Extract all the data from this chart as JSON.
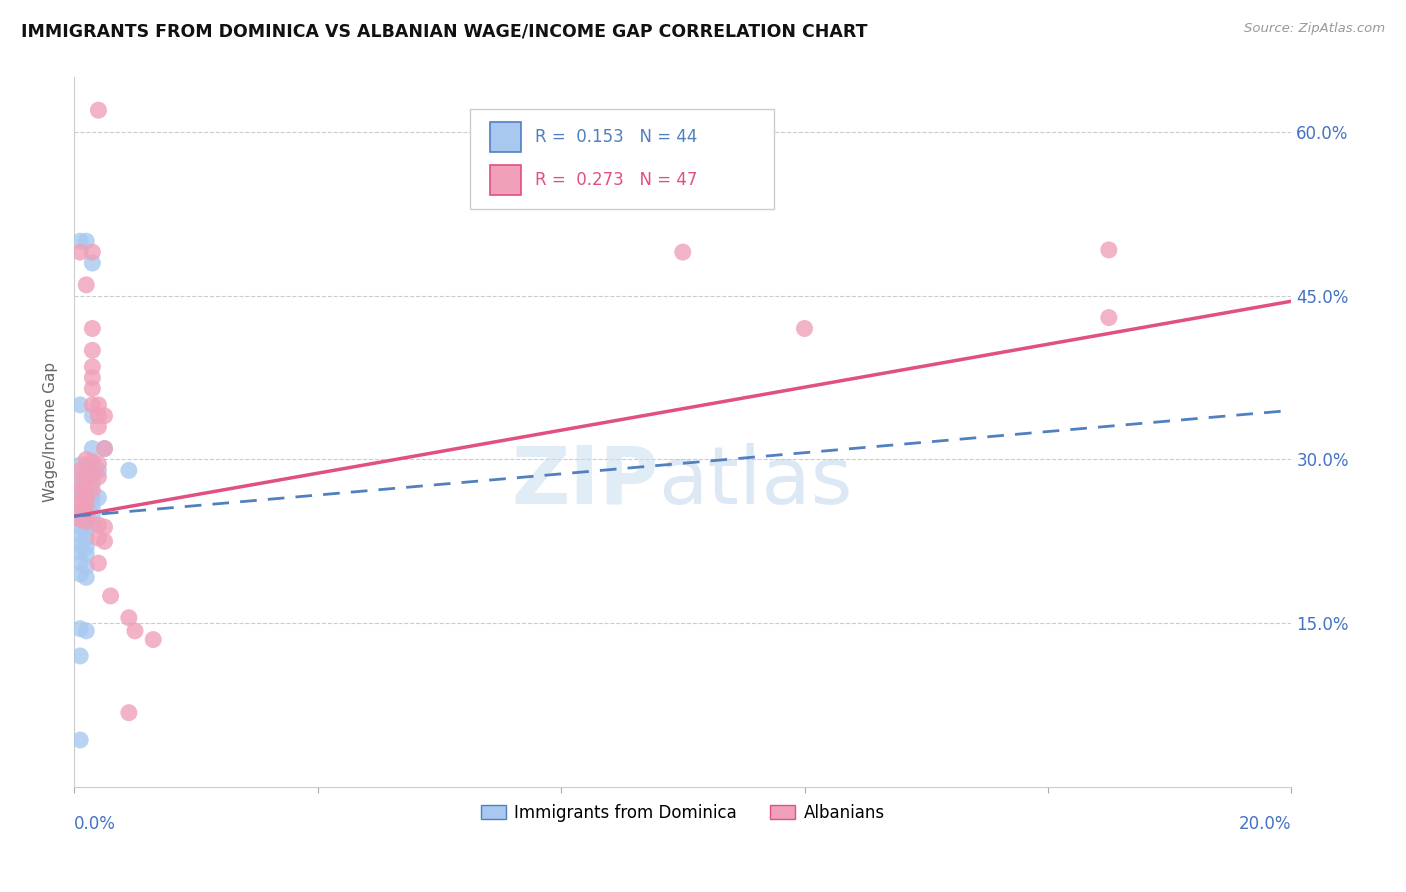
{
  "title": "IMMIGRANTS FROM DOMINICA VS ALBANIAN WAGE/INCOME GAP CORRELATION CHART",
  "source": "Source: ZipAtlas.com",
  "ylabel": "Wage/Income Gap",
  "y_ticks": [
    0.15,
    0.3,
    0.45,
    0.6
  ],
  "y_tick_labels": [
    "15.0%",
    "30.0%",
    "45.0%",
    "60.0%"
  ],
  "blue_scatter_color": "#A8C8F0",
  "pink_scatter_color": "#F0A0B8",
  "trend_blue_color": "#5080C0",
  "trend_pink_color": "#E05080",
  "x_min": 0.0,
  "x_max": 0.2,
  "y_min": 0.0,
  "y_max": 0.65,
  "blue_trend_x0": 0.0,
  "blue_trend_y0": 0.248,
  "blue_trend_x1": 0.2,
  "blue_trend_y1": 0.345,
  "pink_trend_x0": 0.0,
  "pink_trend_y0": 0.248,
  "pink_trend_x1": 0.2,
  "pink_trend_y1": 0.445,
  "blue_points": [
    [
      0.001,
      0.5
    ],
    [
      0.002,
      0.5
    ],
    [
      0.003,
      0.48
    ],
    [
      0.001,
      0.35
    ],
    [
      0.003,
      0.34
    ],
    [
      0.003,
      0.31
    ],
    [
      0.005,
      0.31
    ],
    [
      0.001,
      0.295
    ],
    [
      0.002,
      0.295
    ],
    [
      0.003,
      0.293
    ],
    [
      0.004,
      0.29
    ],
    [
      0.001,
      0.282
    ],
    [
      0.002,
      0.28
    ],
    [
      0.003,
      0.278
    ],
    [
      0.001,
      0.27
    ],
    [
      0.002,
      0.268
    ],
    [
      0.003,
      0.265
    ],
    [
      0.004,
      0.265
    ],
    [
      0.001,
      0.26
    ],
    [
      0.002,
      0.258
    ],
    [
      0.003,
      0.257
    ],
    [
      0.001,
      0.252
    ],
    [
      0.002,
      0.25
    ],
    [
      0.003,
      0.25
    ],
    [
      0.001,
      0.245
    ],
    [
      0.002,
      0.243
    ],
    [
      0.003,
      0.242
    ],
    [
      0.001,
      0.238
    ],
    [
      0.002,
      0.236
    ],
    [
      0.001,
      0.23
    ],
    [
      0.002,
      0.228
    ],
    [
      0.001,
      0.222
    ],
    [
      0.002,
      0.22
    ],
    [
      0.001,
      0.215
    ],
    [
      0.002,
      0.213
    ],
    [
      0.001,
      0.205
    ],
    [
      0.002,
      0.202
    ],
    [
      0.001,
      0.195
    ],
    [
      0.002,
      0.192
    ],
    [
      0.001,
      0.145
    ],
    [
      0.002,
      0.143
    ],
    [
      0.001,
      0.12
    ],
    [
      0.001,
      0.043
    ],
    [
      0.009,
      0.29
    ]
  ],
  "pink_points": [
    [
      0.004,
      0.62
    ],
    [
      0.001,
      0.49
    ],
    [
      0.003,
      0.49
    ],
    [
      0.002,
      0.46
    ],
    [
      0.003,
      0.42
    ],
    [
      0.003,
      0.4
    ],
    [
      0.003,
      0.385
    ],
    [
      0.003,
      0.375
    ],
    [
      0.003,
      0.365
    ],
    [
      0.003,
      0.35
    ],
    [
      0.004,
      0.35
    ],
    [
      0.004,
      0.34
    ],
    [
      0.005,
      0.34
    ],
    [
      0.004,
      0.33
    ],
    [
      0.005,
      0.31
    ],
    [
      0.002,
      0.3
    ],
    [
      0.003,
      0.298
    ],
    [
      0.004,
      0.296
    ],
    [
      0.001,
      0.29
    ],
    [
      0.002,
      0.288
    ],
    [
      0.003,
      0.285
    ],
    [
      0.004,
      0.284
    ],
    [
      0.001,
      0.278
    ],
    [
      0.002,
      0.275
    ],
    [
      0.003,
      0.272
    ],
    [
      0.001,
      0.268
    ],
    [
      0.002,
      0.265
    ],
    [
      0.001,
      0.26
    ],
    [
      0.002,
      0.258
    ],
    [
      0.001,
      0.252
    ],
    [
      0.002,
      0.25
    ],
    [
      0.001,
      0.245
    ],
    [
      0.002,
      0.243
    ],
    [
      0.004,
      0.24
    ],
    [
      0.005,
      0.238
    ],
    [
      0.004,
      0.228
    ],
    [
      0.005,
      0.225
    ],
    [
      0.004,
      0.205
    ],
    [
      0.006,
      0.175
    ],
    [
      0.009,
      0.155
    ],
    [
      0.01,
      0.143
    ],
    [
      0.013,
      0.135
    ],
    [
      0.009,
      0.068
    ],
    [
      0.17,
      0.492
    ],
    [
      0.1,
      0.49
    ],
    [
      0.12,
      0.42
    ],
    [
      0.17,
      0.43
    ]
  ]
}
